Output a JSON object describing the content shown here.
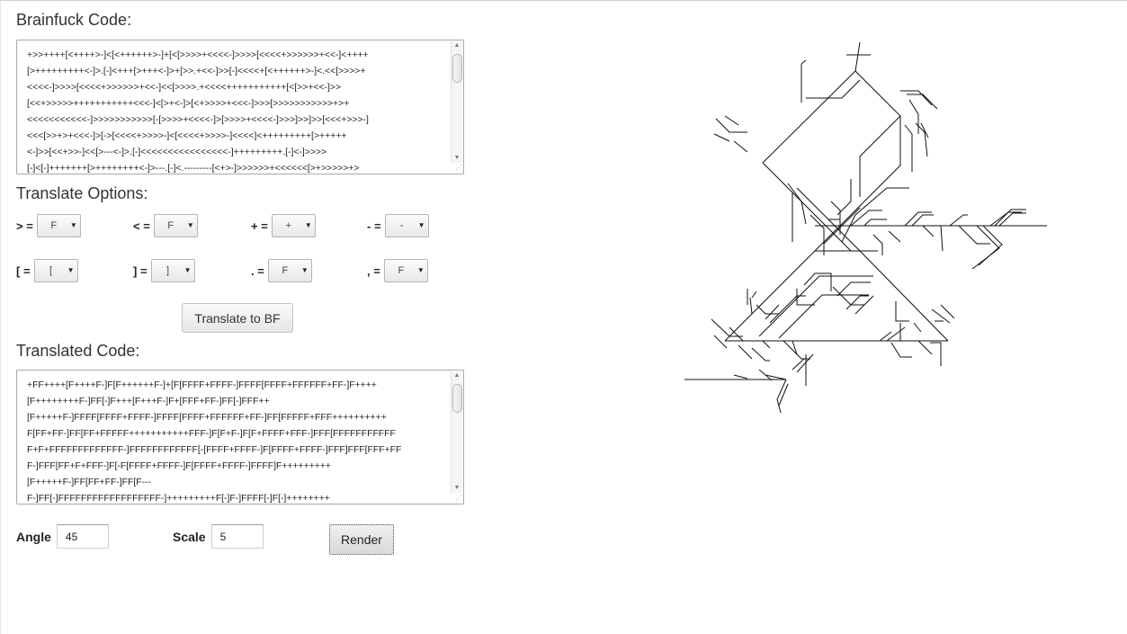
{
  "brainfuck": {
    "heading": "Brainfuck Code:",
    "code": "+>>++++[<++++>-]<[<++++++>-]+[<[>>>>+<<<<-]>>>>[<<<<+>>>>>>+<<-]<++++\n[>+++++++++<-]>.[-]<+++[>+++<-]>+[>>.+<<-]>>[-]<<<<+[<++++++>-]<.<<[>>>>+\n<<<<-]>>>>[<<<<+>>>>>>+<<-]<<[>>>>.+<<<<+++++++++++[<[>>+<<-]>>\n[<<+>>>>>+++++++++++<<<-]<[>+<-]>[<+>>>>+<<<-]>>>[>>>>>>>>>>>+>+\n<<<<<<<<<<<-]>>>>>>>>>>>[-[>>>>+<<<<-]>[>>>>+<<<<-]>>>]>>]>>[<<<+>>>-]\n<<<[>>+>+<<<-]>[->[<<<<+>>>>-]<[<<<<+>>>>-]<<<<]<+++++++++[>+++++\n<-]>>[<<+>>-]<<[>---<-]>.[-]<<<<<<<<<<<<<<<<-]+++++++++.[-]<-]>>>>\n[-]<[-]+++++++[>++++++++<-]>---.[-]<.---------[<+>-]>>>>>>+<<<<<<[>+>>>>>+>"
  },
  "options": {
    "heading": "Translate Options:",
    "items": [
      {
        "label": "> =",
        "value": "F"
      },
      {
        "label": "< =",
        "value": "F"
      },
      {
        "label": "+ =",
        "value": "+"
      },
      {
        "label": "- =",
        "value": "-"
      },
      {
        "label": "[ =",
        "value": "["
      },
      {
        "label": "] =",
        "value": "]"
      },
      {
        "label": ". =",
        "value": "F"
      },
      {
        "label": ", =",
        "value": "F"
      }
    ]
  },
  "translate_button": "Translate to BF",
  "translated": {
    "heading": "Translated Code:",
    "code": "+FF++++[F++++F-]F[F++++++F-]+[F[FFFF+FFFF-]FFFF[FFFF+FFFFFF+FF-]F++++\n[F++++++++F-]FF[-]F+++[F+++F-]F+[FFF+FF-]FF[-]FFF++\n[F+++++F-]FFFF[FFFF+FFFF-]FFFF[FFFF+FFFFFF+FF-]FF[FFFFF+FFF++++++++++\nF[FF+FF-]FF[FF+FFFFF+++++++++++FFF-]F[F+F-]F[F+FFFF+FFF-]FFF[FFFFFFFFFFF\nF+F+FFFFFFFFFFFFF-]FFFFFFFFFFFF[-[FFFF+FFFF-]F[FFFF+FFFF-]FFF]FFF[FFF+FF\nF-]FFF[FF+F+FFF-]F[-F[FFFF+FFFF-]F[FFFF+FFFF-]FFFF]F+++++++++\n[F+++++F-]FF[FF+FF-]FF[F---\nF-]FF[-]FFFFFFFFFFFFFFFFFF-]+++++++++F[-]F-]FFFF[-]F[-]++++++++"
  },
  "angle": {
    "label": "Angle",
    "value": "45"
  },
  "scale": {
    "label": "Scale",
    "value": "5"
  },
  "render_button": "Render"
}
